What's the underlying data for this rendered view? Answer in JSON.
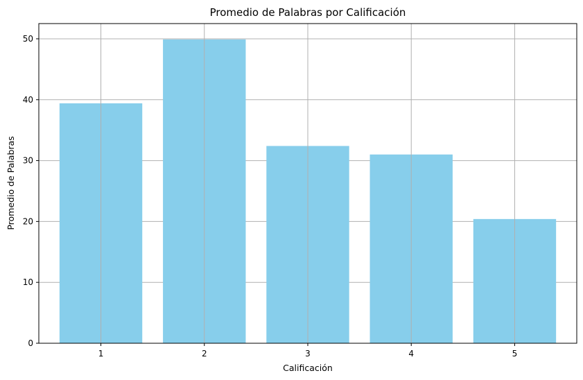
{
  "chart_data": {
    "type": "bar",
    "title": "Promedio de Palabras por Calificación",
    "xlabel": "Calificación",
    "ylabel": "Promedio de Palabras",
    "categories": [
      "1",
      "2",
      "3",
      "4",
      "5"
    ],
    "values": [
      39.4,
      49.9,
      32.4,
      31.0,
      20.4
    ],
    "ylim": [
      0,
      52.5
    ],
    "yticks": [
      0,
      10,
      20,
      30,
      40,
      50
    ],
    "grid": true,
    "bar_color": "#87ceeb"
  }
}
